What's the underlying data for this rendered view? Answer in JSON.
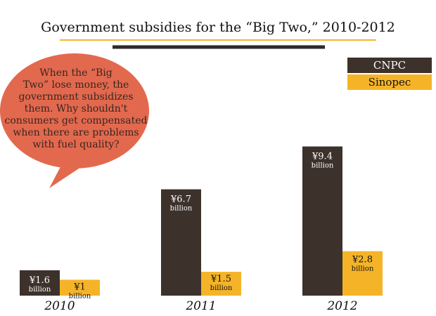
{
  "chart_data": {
    "type": "bar",
    "title": "Government subsidies for the “Big Two,” 2010-2012",
    "categories": [
      "2010",
      "2011",
      "2012"
    ],
    "series": [
      {
        "name": "CNPC",
        "color": "#3d312c",
        "values": [
          1.6,
          6.7,
          9.4
        ],
        "labels": [
          "¥1.6",
          "¥6.7",
          "¥9.4"
        ]
      },
      {
        "name": "Sinopec",
        "color": "#f5b428",
        "values": [
          1,
          1.5,
          2.8
        ],
        "labels": [
          "¥1",
          "¥1.5",
          "¥2.8"
        ]
      }
    ],
    "unit_label": "billion",
    "ylim": [
      0,
      10
    ],
    "grid": false,
    "legend_position": "top-right"
  },
  "annotation": {
    "lines": [
      "When the “Big",
      "Two” lose money, the",
      "government subsidizes",
      "them. Why shouldn't",
      "consumers get compensated",
      "when there are problems",
      "with fuel quality?"
    ],
    "color": "#e2694e"
  },
  "colors": {
    "rule_gold": "#f5b428",
    "rule_dark": "#2a2a2a"
  }
}
